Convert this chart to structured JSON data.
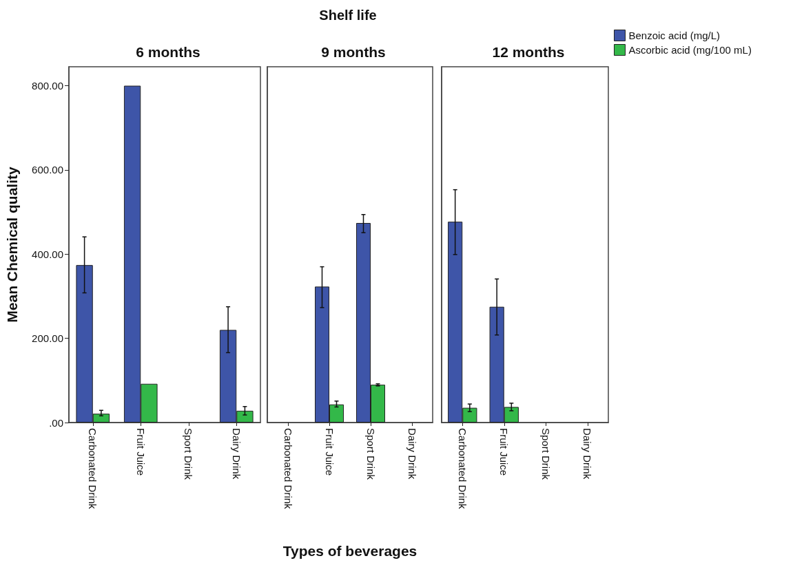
{
  "chart_data": [
    {
      "type": "bar",
      "title": "6 months",
      "ylabel": "Mean Chemical quality",
      "categories": [
        "Carbonated Drink",
        "Fruit Juice",
        "Sport Drink",
        "Dairy Drink"
      ],
      "series": [
        {
          "color": "#3e55a8",
          "values": [
            374,
            800,
            null,
            220
          ],
          "errors": [
            [
              308,
              441
            ],
            null,
            null,
            [
              166,
              275
            ]
          ]
        },
        {
          "color": "#33b849",
          "values": [
            21,
            92,
            null,
            28
          ],
          "errors": [
            [
              16,
              29
            ],
            null,
            null,
            [
              18,
              38
            ]
          ]
        }
      ],
      "ylim": [
        0,
        845
      ],
      "yticks": [
        {
          "value": 0,
          "label": ".00"
        },
        {
          "value": 200,
          "label": "200.00"
        },
        {
          "value": 400,
          "label": "400.00"
        },
        {
          "value": 600,
          "label": "600.00"
        },
        {
          "value": 800,
          "label": "800.00"
        }
      ],
      "grid": false,
      "legend": false
    },
    {
      "type": "bar",
      "title": "9 months",
      "xlabel": "Types of beverages",
      "annotations": [
        "Shelf life"
      ],
      "categories": [
        "Carbonated Drink",
        "Fruit Juice",
        "Sport Drink",
        "Dairy Drink"
      ],
      "series": [
        {
          "color": "#3e55a8",
          "values": [
            null,
            323,
            474,
            null
          ],
          "errors": [
            null,
            [
              273,
              370
            ],
            [
              451,
              494
            ],
            null
          ]
        },
        {
          "color": "#33b849",
          "values": [
            null,
            43,
            90,
            null
          ],
          "errors": [
            null,
            [
              37,
              51
            ],
            [
              87,
              92
            ],
            null
          ]
        }
      ],
      "ylim": [
        0,
        845
      ],
      "tick_labels": "x",
      "grid": false,
      "legend": false
    },
    {
      "type": "bar",
      "title": "12 months",
      "categories": [
        "Carbonated Drink",
        "Fruit Juice",
        "Sport Drink",
        "Dairy Drink"
      ],
      "series": [
        {
          "name": "Benzoic acid (mg/L)",
          "color": "#3e55a8",
          "values": [
            477,
            275,
            null,
            null
          ],
          "errors": [
            [
              399,
              553
            ],
            [
              208,
              341
            ],
            null,
            null
          ]
        },
        {
          "name": "Ascorbic acid (mg/100 mL)",
          "color": "#33b849",
          "values": [
            35,
            37,
            null,
            null
          ],
          "errors": [
            [
              26,
              44
            ],
            [
              28,
              46
            ],
            null,
            null
          ]
        }
      ],
      "ylim": [
        0,
        845
      ],
      "tick_labels": "x",
      "grid": false,
      "legend": "top right"
    }
  ]
}
